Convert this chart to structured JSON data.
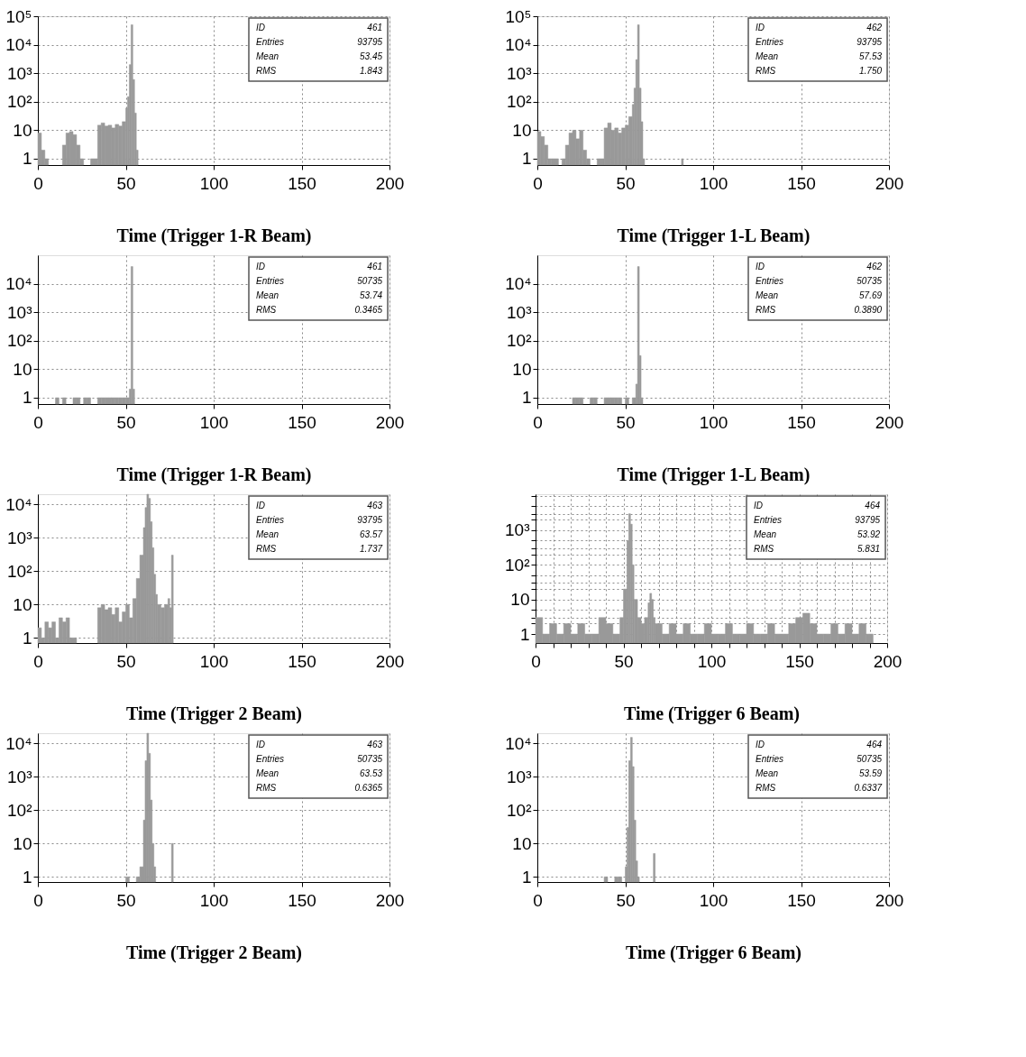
{
  "chart_data": [
    {
      "type": "histogram",
      "xlabel": "Time (Trigger 1-R Beam)",
      "color": "#999999",
      "grid": true,
      "xlim": [
        0,
        200
      ],
      "xticks": [
        0,
        50,
        100,
        150,
        200
      ],
      "ylim": [
        0.6,
        100000
      ],
      "log": true,
      "yticks": [
        1,
        10,
        {
          "value": 100,
          "label": "10²"
        },
        {
          "value": 1000,
          "label": "10³"
        },
        {
          "value": 10000,
          "label": "10⁴"
        },
        {
          "value": 100000,
          "label": "10⁵"
        }
      ],
      "annotations": [
        "ID",
        "461",
        "Entries",
        "93795",
        "Mean",
        "53.45",
        "RMS",
        "1.843"
      ],
      "bins": [
        0,
        2,
        4,
        6,
        14,
        16,
        18,
        20,
        22,
        24,
        26,
        30,
        34,
        36,
        38,
        40,
        42,
        44,
        46,
        48,
        50,
        51,
        52,
        53,
        54,
        55,
        56,
        57
      ],
      "values": [
        8,
        2,
        1,
        null,
        3,
        8,
        9,
        7,
        3,
        1,
        null,
        1,
        15,
        18,
        14,
        15,
        12,
        16,
        14,
        20,
        60,
        150,
        2000,
        50000,
        600,
        40,
        2
      ]
    },
    {
      "type": "histogram",
      "xlabel": "Time (Trigger 1-L Beam)",
      "color": "#999999",
      "grid": true,
      "xlim": [
        0,
        200
      ],
      "xticks": [
        0,
        50,
        100,
        150,
        200
      ],
      "ylim": [
        0.6,
        100000
      ],
      "log": true,
      "yticks": [
        1,
        10,
        {
          "value": 100,
          "label": "10²"
        },
        {
          "value": 1000,
          "label": "10³"
        },
        {
          "value": 10000,
          "label": "10⁴"
        },
        {
          "value": 100000,
          "label": "10⁵"
        }
      ],
      "annotations": [
        "ID",
        "462",
        "Entries",
        "93795",
        "Mean",
        "57.53",
        "RMS",
        "1.750"
      ],
      "bins": [
        0,
        2,
        4,
        6,
        8,
        12,
        14,
        16,
        18,
        20,
        22,
        24,
        26,
        28,
        30,
        34,
        38,
        40,
        42,
        44,
        46,
        48,
        50,
        52,
        54,
        55,
        56,
        57,
        58,
        59,
        60,
        61,
        82,
        83
      ],
      "values": [
        9,
        6,
        3,
        1,
        1,
        null,
        1,
        3,
        8,
        10,
        5,
        10,
        2,
        1,
        null,
        1,
        12,
        18,
        10,
        12,
        8,
        12,
        15,
        30,
        80,
        300,
        3000,
        50000,
        300,
        20,
        1,
        null,
        1
      ]
    },
    {
      "type": "histogram",
      "xlabel": "Time (Trigger 1-R Beam)",
      "color": "#999999",
      "grid": true,
      "xlim": [
        0,
        200
      ],
      "xticks": [
        0,
        50,
        100,
        150,
        200
      ],
      "ylim": [
        0.6,
        100000
      ],
      "log": true,
      "yticks": [
        1,
        10,
        {
          "value": 100,
          "label": "10²"
        },
        {
          "value": 1000,
          "label": "10³"
        },
        {
          "value": 10000,
          "label": "10⁴"
        }
      ],
      "annotations": [
        "ID",
        "461",
        "Entries",
        "50735",
        "Mean",
        "53.74",
        "RMS",
        "0.3465"
      ],
      "bins": [
        10,
        12,
        14,
        16,
        20,
        22,
        24,
        26,
        28,
        30,
        34,
        36,
        38,
        40,
        42,
        44,
        46,
        48,
        50,
        52,
        53,
        54,
        55
      ],
      "values": [
        1,
        null,
        1,
        null,
        1,
        1,
        null,
        1,
        1,
        null,
        1,
        1,
        1,
        1,
        1,
        1,
        1,
        1,
        1,
        2,
        40000,
        2
      ]
    },
    {
      "type": "histogram",
      "xlabel": "Time (Trigger 1-L Beam)",
      "color": "#999999",
      "grid": true,
      "xlim": [
        0,
        200
      ],
      "xticks": [
        0,
        50,
        100,
        150,
        200
      ],
      "ylim": [
        0.6,
        100000
      ],
      "log": true,
      "yticks": [
        1,
        10,
        {
          "value": 100,
          "label": "10²"
        },
        {
          "value": 1000,
          "label": "10³"
        },
        {
          "value": 10000,
          "label": "10⁴"
        }
      ],
      "annotations": [
        "ID",
        "462",
        "Entries",
        "50735",
        "Mean",
        "57.69",
        "RMS",
        "0.3890"
      ],
      "bins": [
        20,
        22,
        24,
        26,
        30,
        32,
        34,
        38,
        40,
        42,
        44,
        46,
        48,
        50,
        52,
        54,
        56,
        57,
        58,
        59,
        60
      ],
      "values": [
        1,
        1,
        1,
        null,
        1,
        1,
        null,
        1,
        1,
        1,
        1,
        1,
        null,
        1,
        null,
        1,
        3,
        40000,
        30,
        1
      ]
    },
    {
      "type": "histogram",
      "xlabel": "Time (Trigger 2   Beam)",
      "color": "#999999",
      "grid": true,
      "xlim": [
        0,
        200
      ],
      "xticks": [
        0,
        50,
        100,
        150,
        200
      ],
      "ylim": [
        0.7,
        20000
      ],
      "log": true,
      "yticks": [
        1,
        10,
        {
          "value": 100,
          "label": "10²"
        },
        {
          "value": 1000,
          "label": "10³"
        },
        {
          "value": 10000,
          "label": "10⁴"
        }
      ],
      "annotations": [
        "ID",
        "463",
        "Entries",
        "93795",
        "Mean",
        "63.57",
        "RMS",
        "1.737"
      ],
      "bins": [
        0,
        2,
        4,
        6,
        8,
        10,
        12,
        14,
        16,
        18,
        20,
        22,
        34,
        36,
        38,
        40,
        42,
        44,
        46,
        48,
        50,
        52,
        54,
        56,
        58,
        60,
        61,
        62,
        63,
        64,
        65,
        66,
        67,
        68,
        70,
        72,
        74,
        75,
        76,
        77
      ],
      "values": [
        2,
        1,
        3,
        2,
        3,
        1,
        4,
        3,
        4,
        1,
        1,
        null,
        8,
        10,
        7,
        8,
        5,
        8,
        3,
        6,
        10,
        4,
        15,
        60,
        300,
        2000,
        8000,
        20000,
        15000,
        3000,
        500,
        80,
        20,
        10,
        8,
        10,
        15,
        8,
        300
      ]
    },
    {
      "type": "histogram",
      "xlabel": "Time (Trigger 6   Beam)",
      "color": "#999999",
      "grid": true,
      "xlim": [
        0,
        200
      ],
      "ylim": [
        0.55,
        11000
      ],
      "log": true,
      "xticks": [
        0,
        {
          "value": 10,
          "label": null
        },
        {
          "value": 20,
          "label": null
        },
        {
          "value": 30,
          "label": null
        },
        {
          "value": 40,
          "label": null
        },
        50,
        {
          "value": 60,
          "label": null
        },
        {
          "value": 70,
          "label": null
        },
        {
          "value": 80,
          "label": null
        },
        {
          "value": 90,
          "label": null
        },
        100,
        {
          "value": 110,
          "label": null
        },
        {
          "value": 120,
          "label": null
        },
        {
          "value": 130,
          "label": null
        },
        {
          "value": 140,
          "label": null
        },
        150,
        {
          "value": 160,
          "label": null
        },
        {
          "value": 170,
          "label": null
        },
        {
          "value": 180,
          "label": null
        },
        {
          "value": 190,
          "label": null
        },
        200
      ],
      "yticks": [
        1,
        {
          "value": 2,
          "label": null
        },
        {
          "value": 3,
          "label": null
        },
        {
          "value": 5,
          "label": null
        },
        10,
        {
          "value": 20,
          "label": null
        },
        {
          "value": 30,
          "label": null
        },
        {
          "value": 50,
          "label": null
        },
        {
          "value": 100,
          "label": "10²"
        },
        {
          "value": 200,
          "label": null
        },
        {
          "value": 300,
          "label": null
        },
        {
          "value": 500,
          "label": null
        },
        {
          "value": 1000,
          "label": "10³"
        },
        {
          "value": 2000,
          "label": null
        },
        {
          "value": 3000,
          "label": null
        },
        {
          "value": 5000,
          "label": null
        },
        {
          "value": 10000,
          "label": null
        }
      ],
      "annotations": [
        "ID",
        "464",
        "Entries",
        "93795",
        "Mean",
        "53.92",
        "RMS",
        "5.831"
      ],
      "bins": [
        0,
        4,
        8,
        12,
        16,
        20,
        24,
        28,
        32,
        36,
        40,
        44,
        48,
        50,
        52,
        53,
        54,
        55,
        56,
        58,
        60,
        62,
        64,
        65,
        66,
        67,
        68,
        72,
        76,
        80,
        84,
        88,
        92,
        96,
        100,
        104,
        108,
        112,
        116,
        120,
        124,
        128,
        132,
        136,
        140,
        144,
        148,
        152,
        156,
        160,
        164,
        168,
        172,
        176,
        180,
        184,
        188,
        192
      ],
      "values": [
        3,
        1,
        2,
        1,
        2,
        1,
        2,
        1,
        1,
        3,
        2,
        1,
        3,
        20,
        500,
        3000,
        1500,
        100,
        10,
        3,
        2,
        3,
        8,
        15,
        10,
        3,
        2,
        1,
        2,
        1,
        2,
        1,
        1,
        2,
        1,
        1,
        2,
        1,
        1,
        2,
        1,
        1,
        2,
        1,
        1,
        2,
        3,
        4,
        2,
        1,
        1,
        2,
        1,
        2,
        1,
        2,
        1
      ]
    },
    {
      "type": "histogram",
      "xlabel": "Time (Trigger 2   Beam)",
      "color": "#999999",
      "grid": true,
      "xlim": [
        0,
        200
      ],
      "xticks": [
        0,
        50,
        100,
        150,
        200
      ],
      "ylim": [
        0.7,
        20000
      ],
      "log": true,
      "yticks": [
        1,
        10,
        {
          "value": 100,
          "label": "10²"
        },
        {
          "value": 1000,
          "label": "10³"
        },
        {
          "value": 10000,
          "label": "10⁴"
        }
      ],
      "annotations": [
        "ID",
        "463",
        "Entries",
        "50735",
        "Mean",
        "63.53",
        "RMS",
        "0.6365"
      ],
      "bins": [
        50,
        52,
        56,
        58,
        60,
        61,
        62,
        63,
        64,
        65,
        66,
        67,
        76,
        77
      ],
      "values": [
        1,
        null,
        1,
        2,
        50,
        3000,
        20000,
        5000,
        200,
        10,
        2,
        null,
        10
      ]
    },
    {
      "type": "histogram",
      "xlabel": "Time (Trigger 6   Beam)",
      "color": "#999999",
      "grid": true,
      "xlim": [
        0,
        200
      ],
      "xticks": [
        0,
        50,
        100,
        150,
        200
      ],
      "ylim": [
        0.7,
        20000
      ],
      "log": true,
      "yticks": [
        1,
        10,
        {
          "value": 100,
          "label": "10²"
        },
        {
          "value": 1000,
          "label": "10³"
        },
        {
          "value": 10000,
          "label": "10⁴"
        }
      ],
      "annotations": [
        "ID",
        "464",
        "Entries",
        "50735",
        "Mean",
        "53.59",
        "RMS",
        "0.6337"
      ],
      "bins": [
        38,
        40,
        44,
        46,
        48,
        50,
        51,
        52,
        53,
        54,
        55,
        56,
        57,
        58,
        66,
        67
      ],
      "values": [
        1,
        null,
        1,
        1,
        null,
        2,
        30,
        3000,
        15000,
        2000,
        50,
        3,
        1,
        null,
        5
      ]
    }
  ]
}
